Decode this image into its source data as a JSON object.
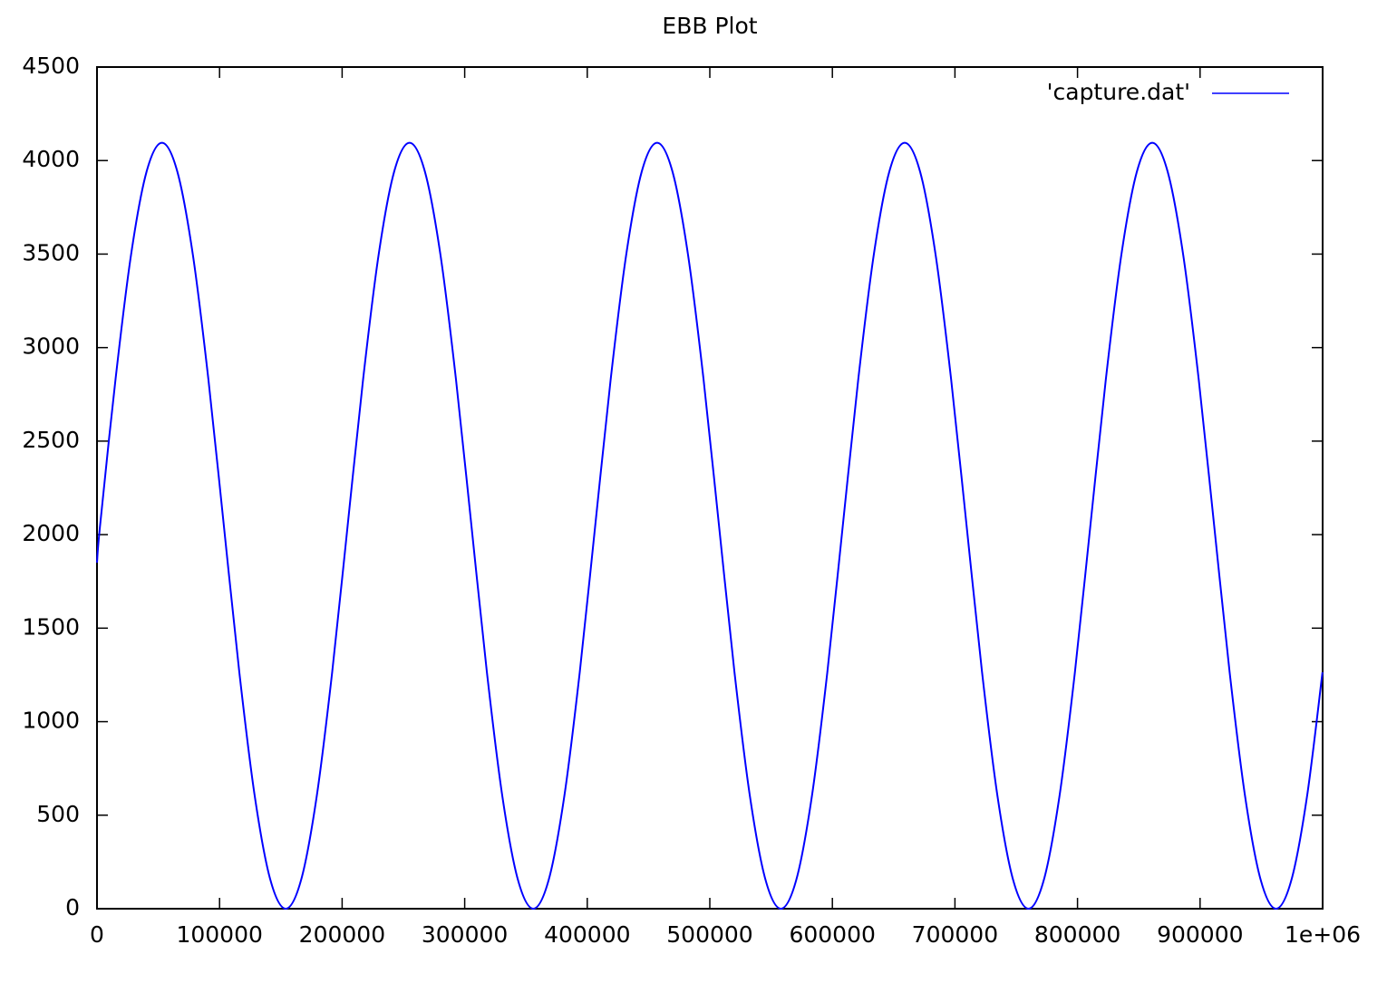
{
  "chart_data": {
    "type": "line",
    "title": "EBB Plot",
    "x": [
      0,
      2500,
      15125,
      27750,
      40375,
      53000,
      65625,
      78250,
      90875,
      103500,
      116125,
      128750,
      141375,
      154000,
      166625,
      179250,
      191875,
      204500,
      217125,
      229750,
      242375,
      255000,
      267625,
      280250,
      292875,
      305500,
      318125,
      330750,
      343375,
      356000,
      368625,
      381250,
      393875,
      406500,
      419125,
      431750,
      444375,
      457000,
      469625,
      482250,
      494875,
      507500,
      520125,
      532750,
      545375,
      558000,
      570625,
      583250,
      595875,
      608500,
      621125,
      633750,
      646375,
      659000,
      671625,
      684250,
      696875,
      709500,
      722125,
      734750,
      747375,
      760000,
      772625,
      785250,
      797875,
      810500,
      823125,
      835750,
      848375,
      861000,
      873625,
      886250,
      898875,
      911500,
      924125,
      936750,
      949375,
      962000,
      974625,
      987250,
      999875
    ],
    "series": [
      {
        "name": "'capture.dat'",
        "color": "#0000ff",
        "values": [
          1850,
          2048,
          2831,
          3495,
          3939,
          4095,
          3939,
          3495,
          2831,
          2048,
          1264,
          600,
          156,
          0,
          156,
          600,
          1264,
          2048,
          2831,
          3495,
          3939,
          4095,
          3939,
          3495,
          2831,
          2048,
          1264,
          600,
          156,
          0,
          156,
          600,
          1264,
          2048,
          2831,
          3495,
          3939,
          4095,
          3939,
          3495,
          2831,
          2048,
          1264,
          600,
          156,
          0,
          156,
          600,
          1264,
          2048,
          2831,
          3495,
          3939,
          4095,
          3939,
          3495,
          2831,
          2048,
          1264,
          600,
          156,
          0,
          156,
          600,
          1264,
          2048,
          2831,
          3495,
          3939,
          4095,
          3939,
          3495,
          2831,
          2048,
          1264,
          600,
          156,
          0,
          156,
          600,
          1264
        ]
      }
    ],
    "xlim": [
      0,
      1000000
    ],
    "xticks": [
      0,
      100000,
      200000,
      300000,
      400000,
      500000,
      600000,
      700000,
      800000,
      900000,
      {
        "value": 1000000,
        "label": "1e+06"
      }
    ],
    "ylim": [
      0,
      4500
    ],
    "yticks": [
      0,
      500,
      1000,
      1500,
      2000,
      2500,
      3000,
      3500,
      4000,
      4500
    ],
    "grid": false,
    "legend": "top-right"
  }
}
